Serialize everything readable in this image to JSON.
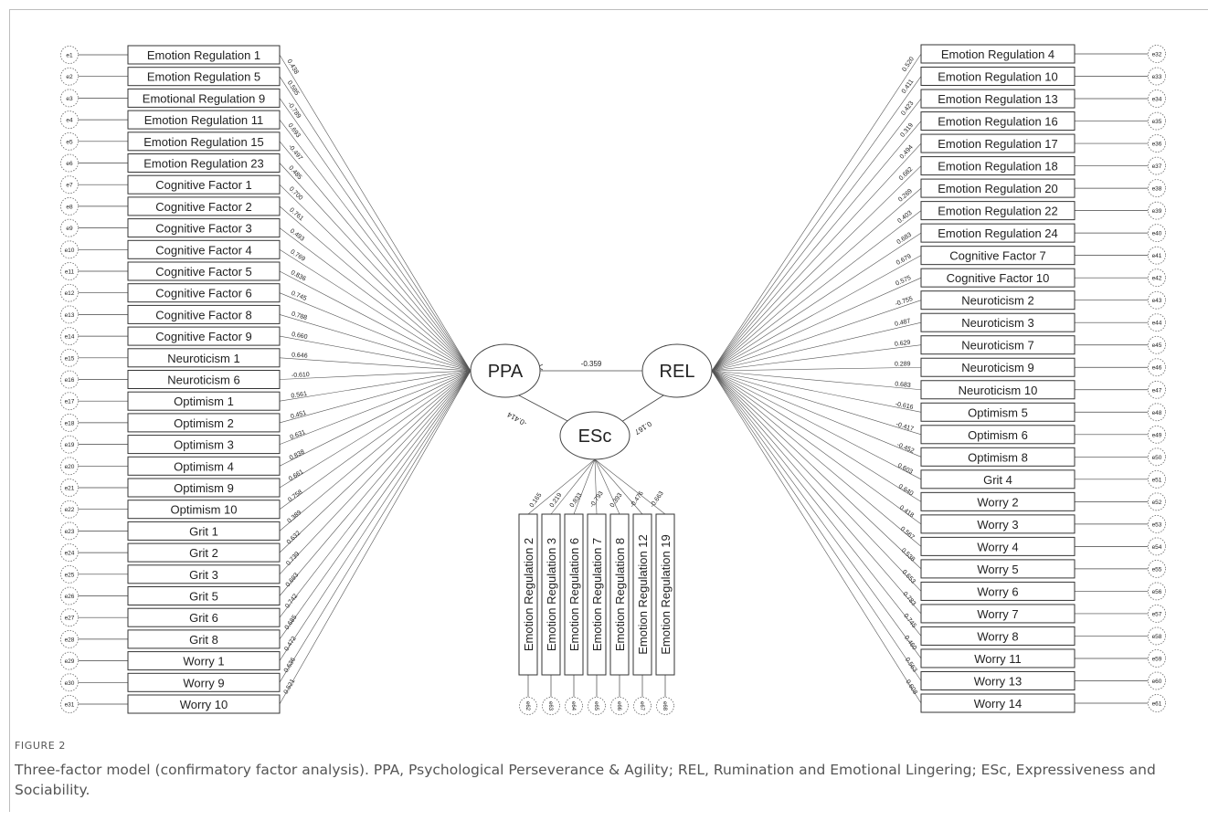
{
  "figure": {
    "label": "FIGURE 2",
    "caption": "Three-factor model (confirmatory factor analysis). PPA, Psychological Perseverance & Agility; REL, Rumination and Emotional Lingering; ESc, Expressiveness and Sociability."
  },
  "factors": {
    "ppa": "PPA",
    "rel": "REL",
    "esc": "ESc"
  },
  "correlations": {
    "ppa_rel": "-0.359",
    "ppa_esc": "-0.414",
    "rel_esc": "0.167"
  },
  "ppa_items": [
    {
      "label": "Emotion Regulation 1",
      "error": "e1",
      "loading": "0.438"
    },
    {
      "label": "Emotion Regulation 5",
      "error": "e2",
      "loading": "0.585"
    },
    {
      "label": "Emotional Regulation 9",
      "error": "e3",
      "loading": "-0.789"
    },
    {
      "label": "Emotion Regulation 11",
      "error": "e4",
      "loading": "0.693"
    },
    {
      "label": "Emotion Regulation 15",
      "error": "e5",
      "loading": "-0.497"
    },
    {
      "label": "Emotion Regulation 23",
      "error": "e6",
      "loading": "0.485"
    },
    {
      "label": "Cognitive Factor 1",
      "error": "e7",
      "loading": "0.700"
    },
    {
      "label": "Cognitive Factor 2",
      "error": "e8",
      "loading": "0.761"
    },
    {
      "label": "Cognitive Factor 3",
      "error": "e9",
      "loading": "0.493"
    },
    {
      "label": "Cognitive Factor 4",
      "error": "e10",
      "loading": "0.769"
    },
    {
      "label": "Cognitive Factor 5",
      "error": "e11",
      "loading": "0.836"
    },
    {
      "label": "Cognitive Factor 6",
      "error": "e12",
      "loading": "0.745"
    },
    {
      "label": "Cognitive Factor 8",
      "error": "e13",
      "loading": "0.788"
    },
    {
      "label": "Cognitive Factor 9",
      "error": "e14",
      "loading": "0.660"
    },
    {
      "label": "Neuroticism 1",
      "error": "e15",
      "loading": "0.646"
    },
    {
      "label": "Neuroticism 6",
      "error": "e16",
      "loading": "-0.610"
    },
    {
      "label": "Optimism 1",
      "error": "e17",
      "loading": "0.561"
    },
    {
      "label": "Optimism 2",
      "error": "e18",
      "loading": "0.451"
    },
    {
      "label": "Optimism 3",
      "error": "e19",
      "loading": "0.631"
    },
    {
      "label": "Optimism 4",
      "error": "e20",
      "loading": "0.838"
    },
    {
      "label": "Optimism 9",
      "error": "e21",
      "loading": "0.661"
    },
    {
      "label": "Optimism 10",
      "error": "e22",
      "loading": "0.758"
    },
    {
      "label": "Grit 1",
      "error": "e23",
      "loading": "0.389"
    },
    {
      "label": "Grit 2",
      "error": "e24",
      "loading": "0.632"
    },
    {
      "label": "Grit 3",
      "error": "e25",
      "loading": "0.739"
    },
    {
      "label": "Grit 5",
      "error": "e26",
      "loading": "0.693"
    },
    {
      "label": "Grit 6",
      "error": "e27",
      "loading": "0.742"
    },
    {
      "label": "Grit 8",
      "error": "e28",
      "loading": "0.685"
    },
    {
      "label": "Worry 1",
      "error": "e29",
      "loading": "0.472"
    },
    {
      "label": "Worry 9",
      "error": "e30",
      "loading": "0.636"
    },
    {
      "label": "Worry 10",
      "error": "e31",
      "loading": "0.521"
    }
  ],
  "rel_items": [
    {
      "label": "Emotion Regulation 4",
      "error": "e32",
      "loading": "0.520"
    },
    {
      "label": "Emotion Regulation 10",
      "error": "e33",
      "loading": "0.411"
    },
    {
      "label": "Emotion Regulation 13",
      "error": "e34",
      "loading": "0.423"
    },
    {
      "label": "Emotion Regulation 16",
      "error": "e35",
      "loading": "0.319"
    },
    {
      "label": "Emotion Regulation 17",
      "error": "e36",
      "loading": "0.494"
    },
    {
      "label": "Emotion Regulation 18",
      "error": "e37",
      "loading": "0.682"
    },
    {
      "label": "Emotion Regulation 20",
      "error": "e38",
      "loading": "0.269"
    },
    {
      "label": "Emotion Regulation 22",
      "error": "e39",
      "loading": "0.403"
    },
    {
      "label": "Emotion Regulation 24",
      "error": "e40",
      "loading": "0.683"
    },
    {
      "label": "Cognitive Factor 7",
      "error": "e41",
      "loading": "0.679"
    },
    {
      "label": "Cognitive Factor 10",
      "error": "e42",
      "loading": "0.575"
    },
    {
      "label": "Neuroticism 2",
      "error": "e43",
      "loading": "-0.755"
    },
    {
      "label": "Neuroticism 3",
      "error": "e44",
      "loading": "0.487"
    },
    {
      "label": "Neuroticism 7",
      "error": "e45",
      "loading": "0.629"
    },
    {
      "label": "Neuroticism 9",
      "error": "e46",
      "loading": "0.289"
    },
    {
      "label": "Neuroticism 10",
      "error": "e47",
      "loading": "0.683"
    },
    {
      "label": "Optimism 5",
      "error": "e48",
      "loading": "-0.616"
    },
    {
      "label": "Optimism 6",
      "error": "e49",
      "loading": "-0.417"
    },
    {
      "label": "Optimism 8",
      "error": "e50",
      "loading": "-0.452"
    },
    {
      "label": "Grit 4",
      "error": "e51",
      "loading": "0.603"
    },
    {
      "label": "Worry 2",
      "error": "e52",
      "loading": "0.640"
    },
    {
      "label": "Worry 3",
      "error": "e53",
      "loading": "0.418"
    },
    {
      "label": "Worry 4",
      "error": "e54",
      "loading": "0.567"
    },
    {
      "label": "Worry 5",
      "error": "e55",
      "loading": "0.538"
    },
    {
      "label": "Worry 6",
      "error": "e56",
      "loading": "0.653"
    },
    {
      "label": "Worry 7",
      "error": "e57",
      "loading": "0.783"
    },
    {
      "label": "Worry 8",
      "error": "e58",
      "loading": "0.745"
    },
    {
      "label": "Worry 11",
      "error": "e59",
      "loading": "0.460"
    },
    {
      "label": "Worry 13",
      "error": "e60",
      "loading": "0.563"
    },
    {
      "label": "Worry 14",
      "error": "e61",
      "loading": "0.608"
    }
  ],
  "esc_items": [
    {
      "label": "Emotion Regulation 2",
      "error": "e62",
      "loading": "0.165"
    },
    {
      "label": "Emotion Regulation 3",
      "error": "e63",
      "loading": "0.219"
    },
    {
      "label": "Emotion Regulation 6",
      "error": "e64",
      "loading": "0.833"
    },
    {
      "label": "Emotion Regulation 7",
      "error": "e65",
      "loading": "-0.793"
    },
    {
      "label": "Emotion Regulation 8",
      "error": "e66",
      "loading": "0.393"
    },
    {
      "label": "Emotion Regulation 12",
      "error": "e67",
      "loading": "-0.476"
    },
    {
      "label": "Emotion Regulation 19",
      "error": "e68",
      "loading": "-0.663"
    }
  ]
}
